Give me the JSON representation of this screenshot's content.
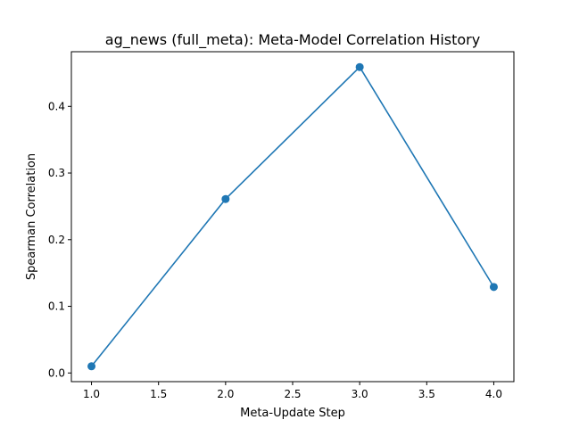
{
  "chart_data": {
    "type": "line",
    "title": "ag_news (full_meta): Meta-Model Correlation History",
    "xlabel": "Meta-Update Step",
    "ylabel": "Spearman Correlation",
    "x": [
      1.0,
      2.0,
      3.0,
      4.0
    ],
    "series": [
      {
        "values": [
          0.01,
          0.261,
          0.459,
          0.129
        ],
        "color": "#1f77b4",
        "marker": "circle"
      }
    ],
    "xlim": [
      0.85,
      4.15
    ],
    "ylim": [
      -0.013,
      0.482
    ],
    "xticks": [
      1.0,
      1.5,
      2.0,
      2.5,
      3.0,
      3.5,
      4.0
    ],
    "xtick_labels": [
      "1.0",
      "1.5",
      "2.0",
      "2.5",
      "3.0",
      "3.5",
      "4.0"
    ],
    "yticks": [
      0.0,
      0.1,
      0.2,
      0.3,
      0.4
    ],
    "ytick_labels": [
      "0.0",
      "0.1",
      "0.2",
      "0.3",
      "0.4"
    ],
    "grid": false,
    "legend": "none"
  }
}
